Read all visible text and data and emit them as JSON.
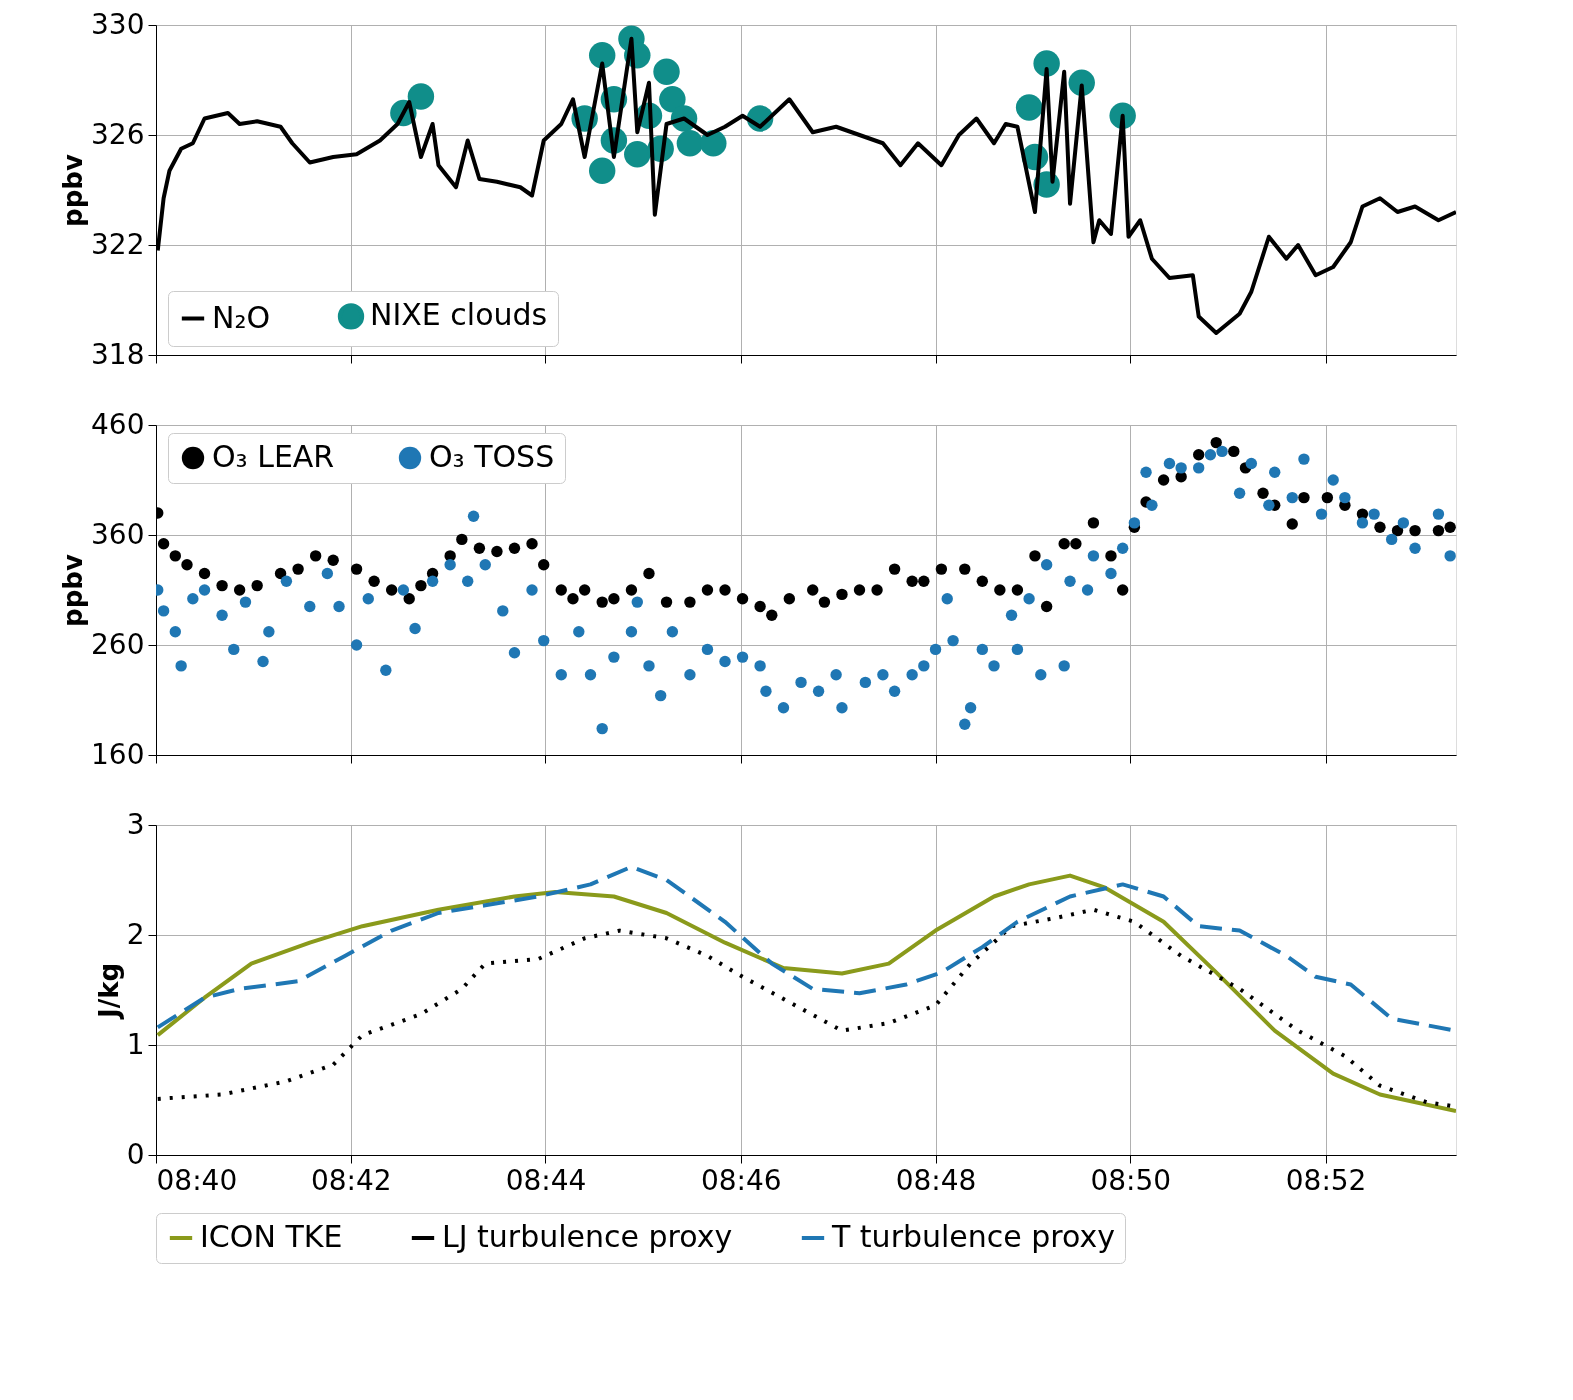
{
  "chart_data": [
    {
      "type": "line",
      "ylabel": "ppbv",
      "xlim": [
        8.6667,
        8.889
      ],
      "ylim": [
        318,
        330
      ],
      "yticks": [
        318,
        322,
        326,
        330
      ],
      "xticks": [
        {
          "value": 8.6667,
          "label": null
        },
        {
          "value": 8.7,
          "label": null
        },
        {
          "value": 8.7333,
          "label": null
        },
        {
          "value": 8.7667,
          "label": null
        },
        {
          "value": 8.8,
          "label": null
        },
        {
          "value": 8.8333,
          "label": null
        },
        {
          "value": 8.8667,
          "label": null
        }
      ],
      "tick_labels": "y",
      "grid": true,
      "legend": "bottom left",
      "series": [
        {
          "name": "N₂O",
          "type": "line",
          "color": "#000000",
          "line_style": "solid",
          "x": [
            8.667,
            8.668,
            8.669,
            8.671,
            8.673,
            8.675,
            8.679,
            8.681,
            8.684,
            8.688,
            8.69,
            8.693,
            8.697,
            8.701,
            8.705,
            8.708,
            8.71,
            8.712,
            8.714,
            8.715,
            8.718,
            8.72,
            8.722,
            8.725,
            8.729,
            8.731,
            8.733,
            8.736,
            8.738,
            8.74,
            8.743,
            8.745,
            8.748,
            8.749,
            8.751,
            8.752,
            8.754,
            8.757,
            8.761,
            8.764,
            8.767,
            8.77,
            8.775,
            8.779,
            8.783,
            8.787,
            8.791,
            8.794,
            8.797,
            8.801,
            8.804,
            8.807,
            8.81,
            8.812,
            8.814,
            8.817,
            8.819,
            8.82,
            8.822,
            8.823,
            8.825,
            8.827,
            8.828,
            8.83,
            8.832,
            8.833,
            8.835,
            8.837,
            8.84,
            8.844,
            8.845,
            8.848,
            8.852,
            8.854,
            8.857,
            8.86,
            8.862,
            8.865,
            8.868,
            8.871,
            8.873,
            8.876,
            8.879,
            8.882,
            8.886,
            8.889
          ],
          "values": [
            321.8,
            323.7,
            324.7,
            325.5,
            325.7,
            326.6,
            326.8,
            326.4,
            326.5,
            326.3,
            325.7,
            325.0,
            325.2,
            325.3,
            325.8,
            326.4,
            327.2,
            325.2,
            326.4,
            324.9,
            324.1,
            325.8,
            324.4,
            324.3,
            324.1,
            323.8,
            325.8,
            326.4,
            327.3,
            325.2,
            328.6,
            325.2,
            329.5,
            326.1,
            327.9,
            323.1,
            326.4,
            326.6,
            326.0,
            326.3,
            326.7,
            326.3,
            327.3,
            326.1,
            326.3,
            326.0,
            325.7,
            324.9,
            325.7,
            324.9,
            326.0,
            326.6,
            325.7,
            326.4,
            326.3,
            323.2,
            328.4,
            324.3,
            328.3,
            323.5,
            327.8,
            322.1,
            322.9,
            322.4,
            326.7,
            322.3,
            322.9,
            321.5,
            320.8,
            320.9,
            319.4,
            318.8,
            319.5,
            320.3,
            322.3,
            321.5,
            322.0,
            320.9,
            321.2,
            322.1,
            323.4,
            323.7,
            323.2,
            323.4,
            322.9,
            323.2
          ]
        },
        {
          "name": "NIXE clouds",
          "type": "scatter",
          "marker": "circle",
          "color": "#108e8a",
          "x": [
            8.709,
            8.712,
            8.74,
            8.743,
            8.743,
            8.745,
            8.745,
            8.748,
            8.749,
            8.749,
            8.751,
            8.753,
            8.754,
            8.755,
            8.757,
            8.758,
            8.762,
            8.77,
            8.816,
            8.817,
            8.819,
            8.819,
            8.825,
            8.832
          ],
          "values": [
            326.8,
            327.4,
            326.6,
            324.7,
            328.9,
            327.3,
            325.8,
            329.5,
            328.9,
            325.3,
            326.7,
            325.5,
            328.3,
            327.3,
            326.6,
            325.7,
            325.7,
            326.6,
            327.0,
            325.2,
            328.6,
            324.2,
            327.9,
            326.7
          ]
        }
      ]
    },
    {
      "type": "scatter",
      "ylabel": "ppbv",
      "xlim": [
        8.6667,
        8.889
      ],
      "ylim": [
        160,
        460
      ],
      "yticks": [
        160,
        260,
        360,
        460
      ],
      "xticks": [
        {
          "value": 8.6667,
          "label": null
        },
        {
          "value": 8.7,
          "label": null
        },
        {
          "value": 8.7333,
          "label": null
        },
        {
          "value": 8.7667,
          "label": null
        },
        {
          "value": 8.8,
          "label": null
        },
        {
          "value": 8.8333,
          "label": null
        },
        {
          "value": 8.8667,
          "label": null
        }
      ],
      "tick_labels": "y",
      "grid": true,
      "legend": "top left",
      "series": [
        {
          "name": "O₃ LEAR",
          "type": "scatter",
          "marker": "circle",
          "color": "#000000",
          "x": [
            8.667,
            8.668,
            8.67,
            8.672,
            8.675,
            8.678,
            8.681,
            8.684,
            8.688,
            8.691,
            8.694,
            8.697,
            8.701,
            8.704,
            8.707,
            8.71,
            8.712,
            8.714,
            8.717,
            8.719,
            8.722,
            8.725,
            8.728,
            8.731,
            8.733,
            8.736,
            8.738,
            8.74,
            8.743,
            8.745,
            8.748,
            8.751,
            8.754,
            8.758,
            8.761,
            8.764,
            8.767,
            8.77,
            8.772,
            8.775,
            8.779,
            8.781,
            8.784,
            8.787,
            8.79,
            8.793,
            8.796,
            8.798,
            8.801,
            8.805,
            8.808,
            8.811,
            8.814,
            8.817,
            8.819,
            8.822,
            8.824,
            8.827,
            8.83,
            8.832,
            8.834,
            8.836,
            8.839,
            8.842,
            8.845,
            8.848,
            8.851,
            8.853,
            8.856,
            8.858,
            8.861,
            8.863,
            8.867,
            8.87,
            8.873,
            8.876,
            8.879,
            8.882,
            8.886,
            8.888
          ],
          "values": [
            380,
            352,
            341,
            333,
            325,
            314,
            310,
            314,
            325,
            329,
            341,
            337,
            329,
            318,
            310,
            302,
            314,
            325,
            341,
            356,
            348,
            345,
            348,
            352,
            333,
            310,
            302,
            310,
            299,
            302,
            310,
            325,
            299,
            299,
            310,
            310,
            302,
            295,
            287,
            302,
            310,
            299,
            306,
            310,
            310,
            329,
            318,
            318,
            329,
            329,
            318,
            310,
            310,
            341,
            295,
            352,
            352,
            371,
            341,
            310,
            367,
            390,
            410,
            413,
            433,
            444,
            436,
            421,
            398,
            387,
            370,
            394,
            394,
            387,
            379,
            367,
            364,
            364,
            364,
            367
          ]
        },
        {
          "name": "O₃ TOSS",
          "type": "scatter",
          "marker": "circle",
          "color": "#1f77b4",
          "x": [
            8.667,
            8.668,
            8.67,
            8.671,
            8.673,
            8.675,
            8.678,
            8.68,
            8.682,
            8.685,
            8.686,
            8.689,
            8.693,
            8.696,
            8.698,
            8.701,
            8.703,
            8.706,
            8.709,
            8.711,
            8.714,
            8.717,
            8.72,
            8.721,
            8.723,
            8.726,
            8.728,
            8.731,
            8.733,
            8.736,
            8.739,
            8.741,
            8.743,
            8.745,
            8.748,
            8.749,
            8.751,
            8.753,
            8.755,
            8.758,
            8.761,
            8.764,
            8.767,
            8.77,
            8.771,
            8.774,
            8.777,
            8.78,
            8.783,
            8.784,
            8.788,
            8.791,
            8.793,
            8.796,
            8.798,
            8.8,
            8.802,
            8.803,
            8.805,
            8.806,
            8.808,
            8.81,
            8.813,
            8.814,
            8.816,
            8.818,
            8.819,
            8.822,
            8.823,
            8.826,
            8.827,
            8.83,
            8.832,
            8.834,
            8.836,
            8.837,
            8.84,
            8.842,
            8.845,
            8.847,
            8.849,
            8.852,
            8.854,
            8.857,
            8.858,
            8.861,
            8.863,
            8.866,
            8.868,
            8.87,
            8.873,
            8.875,
            8.878,
            8.88,
            8.882,
            8.886,
            8.888
          ],
          "values": [
            310,
            291,
            272,
            241,
            302,
            310,
            287,
            256,
            299,
            245,
            272,
            318,
            295,
            325,
            295,
            260,
            302,
            237,
            310,
            275,
            318,
            333,
            318,
            377,
            333,
            291,
            253,
            310,
            264,
            233,
            272,
            233,
            184,
            249,
            272,
            299,
            241,
            214,
            272,
            233,
            256,
            245,
            249,
            241,
            218,
            203,
            226,
            218,
            233,
            203,
            226,
            233,
            218,
            233,
            241,
            256,
            302,
            264,
            188,
            203,
            256,
            241,
            287,
            256,
            302,
            233,
            333,
            241,
            318,
            310,
            341,
            325,
            348,
            371,
            417,
            387,
            425,
            421,
            421,
            433,
            436,
            398,
            425,
            387,
            417,
            394,
            429,
            379,
            410,
            394,
            371,
            379,
            356,
            371,
            348,
            379,
            341
          ]
        }
      ]
    },
    {
      "type": "line",
      "ylabel": "J/kg",
      "xlim": [
        8.6667,
        8.889
      ],
      "ylim": [
        0,
        3
      ],
      "yticks": [
        0,
        1,
        2,
        3
      ],
      "xticks": [
        {
          "value": 8.6667,
          "label": "08:40"
        },
        {
          "value": 8.7,
          "label": "08:42"
        },
        {
          "value": 8.7333,
          "label": "08:44"
        },
        {
          "value": 8.7667,
          "label": "08:46"
        },
        {
          "value": 8.8,
          "label": "08:48"
        },
        {
          "value": 8.8333,
          "label": "08:50"
        },
        {
          "value": 8.8667,
          "label": "08:52"
        }
      ],
      "grid": true,
      "legend": "bottom",
      "series": [
        {
          "name": "ICON TKE",
          "type": "line",
          "color": "#8a9a1b",
          "line_style": "solid",
          "x": [
            8.667,
            8.675,
            8.683,
            8.693,
            8.702,
            8.715,
            8.728,
            8.735,
            8.745,
            8.754,
            8.764,
            8.774,
            8.784,
            8.792,
            8.8,
            8.81,
            8.816,
            8.823,
            8.829,
            8.839,
            8.848,
            8.858,
            8.868,
            8.876,
            8.889
          ],
          "values": [
            1.09,
            1.43,
            1.74,
            1.93,
            2.08,
            2.23,
            2.35,
            2.39,
            2.35,
            2.2,
            1.93,
            1.7,
            1.65,
            1.74,
            2.04,
            2.35,
            2.46,
            2.54,
            2.43,
            2.12,
            1.66,
            1.13,
            0.74,
            0.55,
            0.4
          ]
        },
        {
          "name": "LJ turbulence proxy",
          "type": "line",
          "color": "#000000",
          "line_style": "dotted",
          "x": [
            8.667,
            8.678,
            8.689,
            8.697,
            8.702,
            8.712,
            8.719,
            8.723,
            8.732,
            8.74,
            8.746,
            8.754,
            8.761,
            8.767,
            8.775,
            8.784,
            8.792,
            8.8,
            8.806,
            8.813,
            8.821,
            8.827,
            8.834,
            8.842,
            8.852,
            8.862,
            8.87,
            8.876,
            8.884,
            8.889
          ],
          "values": [
            0.51,
            0.55,
            0.67,
            0.82,
            1.09,
            1.28,
            1.51,
            1.74,
            1.78,
            1.97,
            2.04,
            1.97,
            1.81,
            1.62,
            1.39,
            1.13,
            1.2,
            1.36,
            1.74,
            2.08,
            2.16,
            2.23,
            2.12,
            1.81,
            1.51,
            1.13,
            0.9,
            0.63,
            0.48,
            0.44
          ]
        },
        {
          "name": "T turbulence proxy",
          "type": "line",
          "color": "#1f77b4",
          "line_style": "dashed",
          "x": [
            8.667,
            8.675,
            8.681,
            8.691,
            8.699,
            8.707,
            8.715,
            8.723,
            8.732,
            8.741,
            8.748,
            8.754,
            8.764,
            8.772,
            8.779,
            8.787,
            8.795,
            8.801,
            8.808,
            8.814,
            8.823,
            8.832,
            8.839,
            8.845,
            8.852,
            8.86,
            8.865,
            8.871,
            8.878,
            8.889
          ],
          "values": [
            1.16,
            1.43,
            1.51,
            1.58,
            1.81,
            2.04,
            2.2,
            2.27,
            2.35,
            2.46,
            2.62,
            2.5,
            2.12,
            1.74,
            1.51,
            1.47,
            1.55,
            1.66,
            1.89,
            2.12,
            2.35,
            2.46,
            2.35,
            2.08,
            2.04,
            1.81,
            1.62,
            1.55,
            1.24,
            1.13
          ]
        }
      ]
    }
  ]
}
